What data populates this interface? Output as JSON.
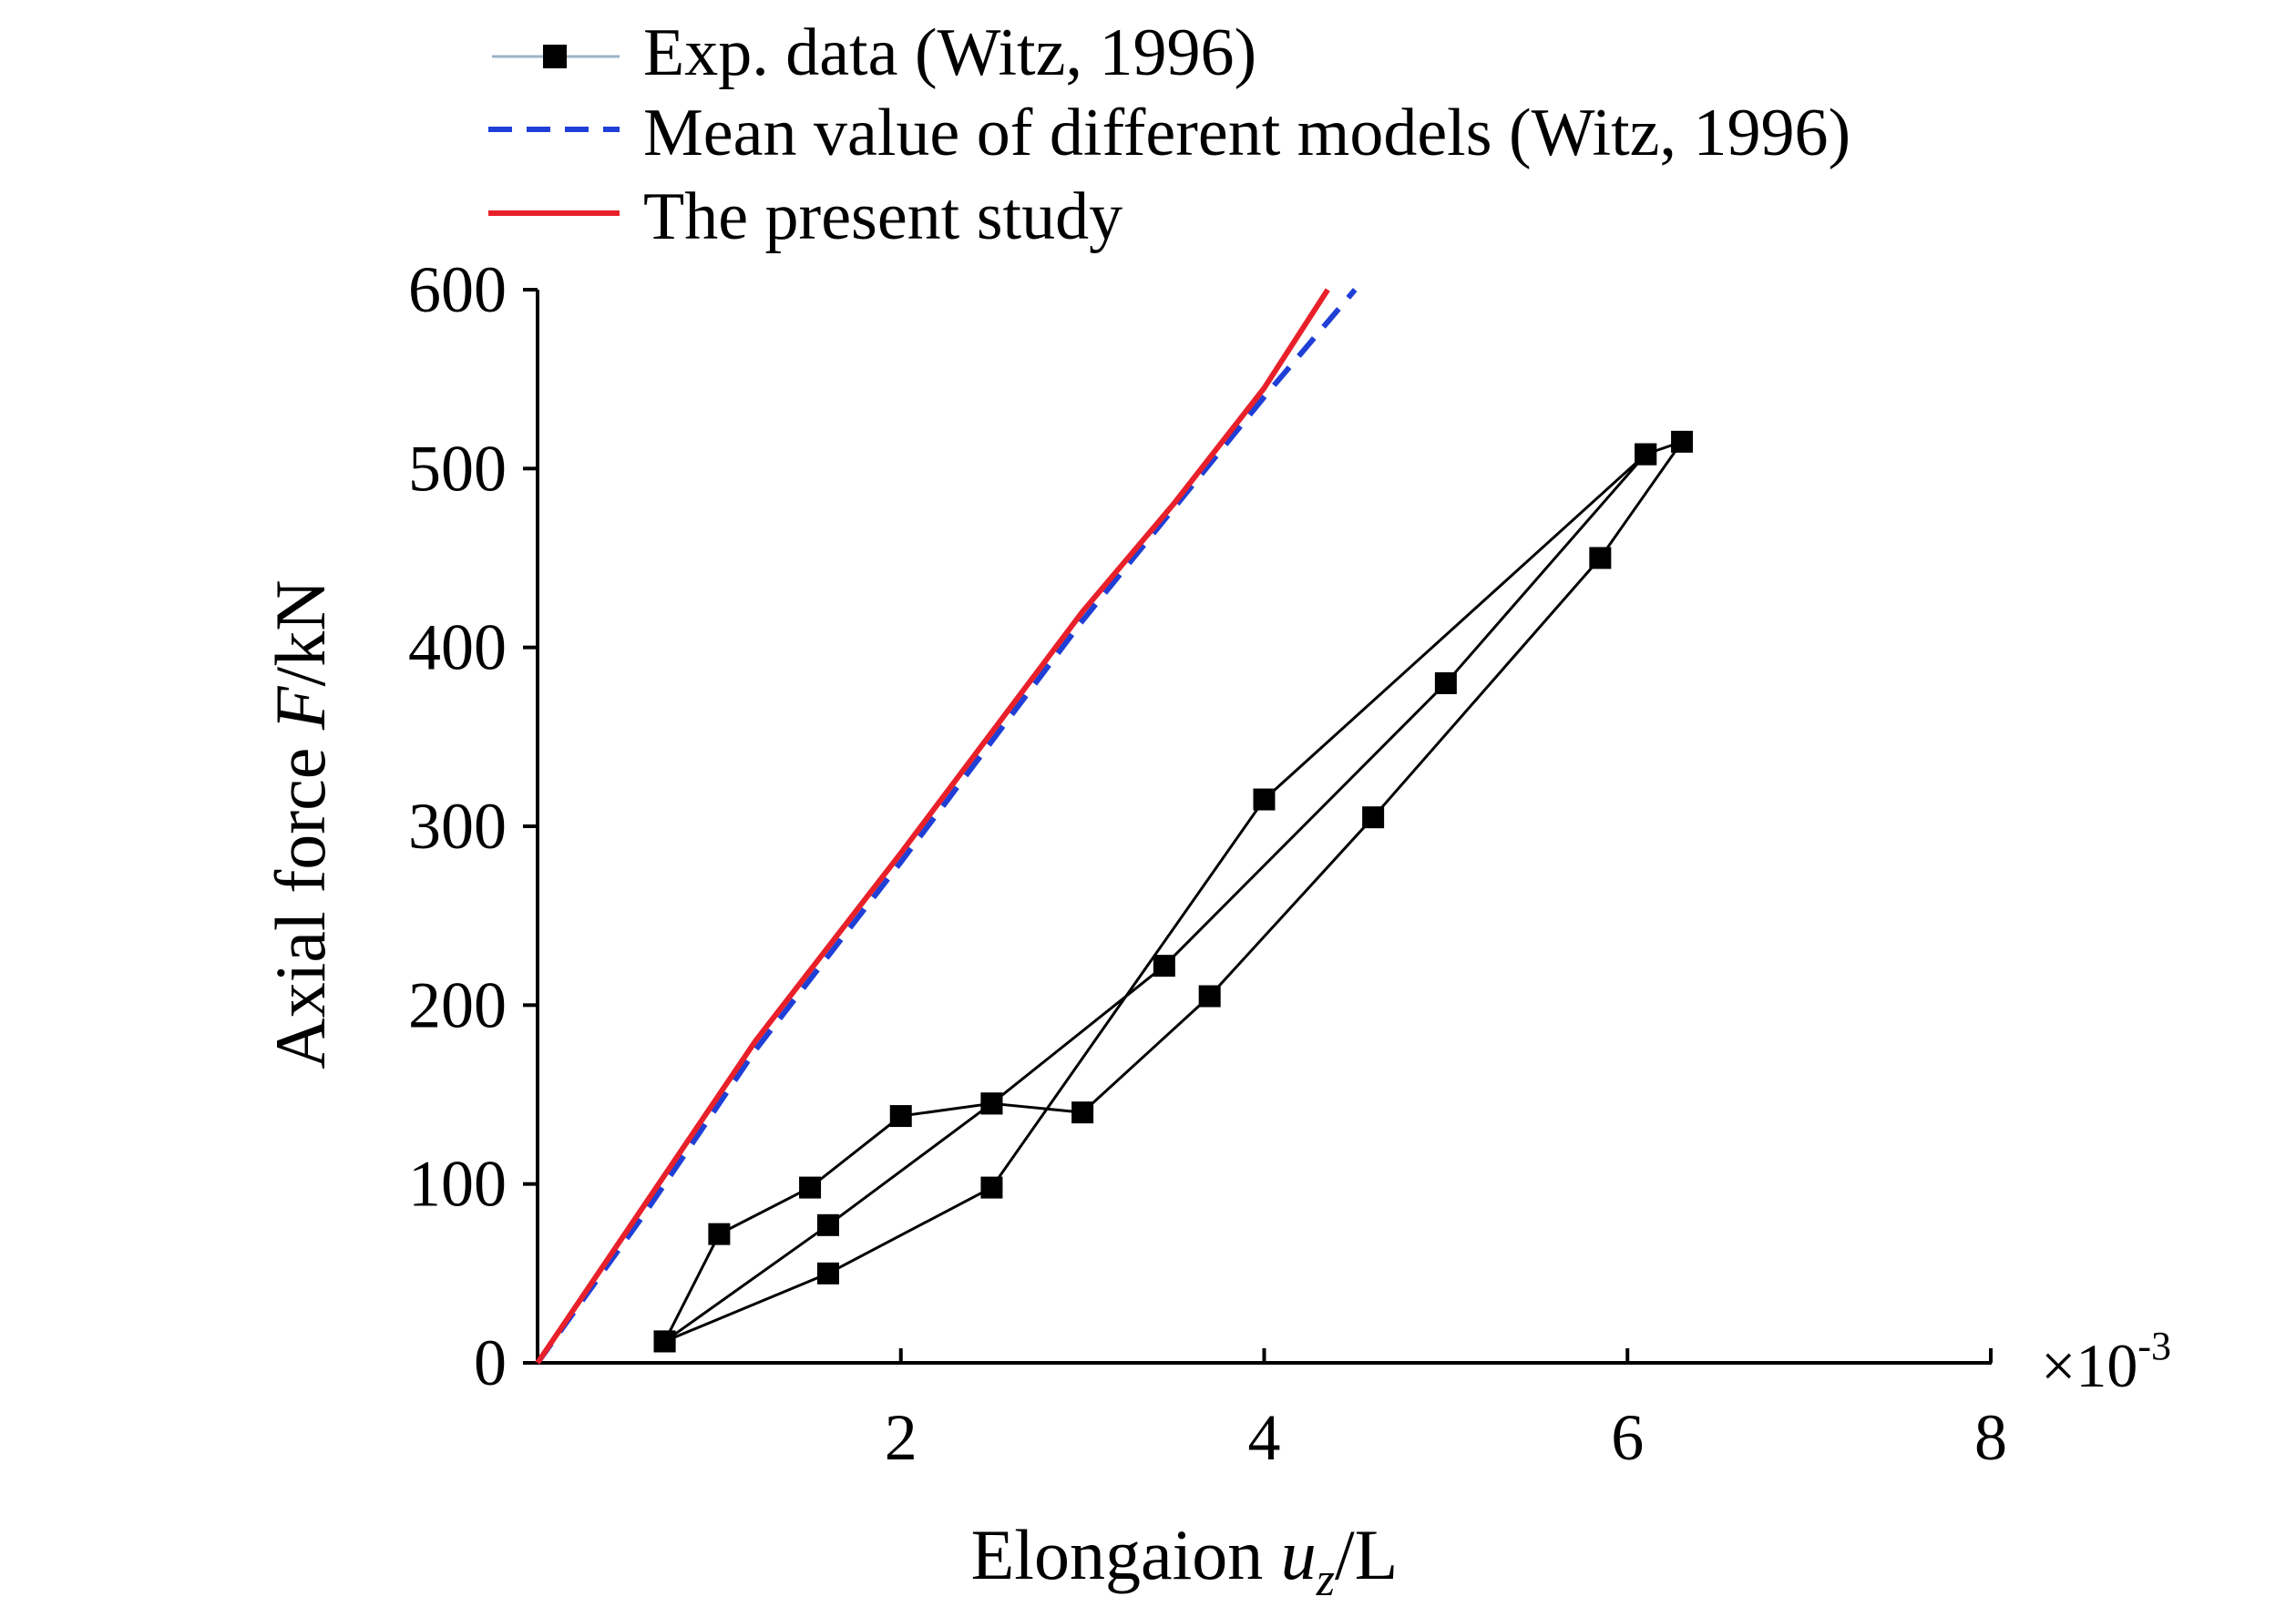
{
  "chart_data": {
    "type": "line",
    "xlabel": {
      "prefix": "Elongaion ",
      "var": "u",
      "sub": "z",
      "suffix": "/L"
    },
    "ylabel": {
      "prefix": "Axial force ",
      "var": "F",
      "suffix": "/kN"
    },
    "x_multiplier": {
      "base": "×10",
      "exp": "-3"
    },
    "xlim": [
      0,
      8
    ],
    "ylim": [
      0,
      600
    ],
    "x_ticks": [
      2,
      4,
      6,
      8
    ],
    "y_ticks": [
      0,
      100,
      200,
      300,
      400,
      500,
      600
    ],
    "grid": false,
    "legend_position": "top",
    "series": [
      {
        "name": "Exp. data (Witz, 1996)",
        "style": "line-square-markers",
        "color": "#000000",
        "x": [
          0.7,
          1.0,
          1.5,
          2.0,
          2.5,
          3.0,
          3.7,
          4.6,
          5.85,
          6.3,
          6.1,
          5.0,
          3.45,
          2.5,
          1.6,
          0.7,
          1.6,
          2.5,
          4.0,
          6.1
        ],
        "y": [
          12,
          72,
          98,
          138,
          145,
          140,
          205,
          305,
          450,
          515,
          508,
          380,
          222,
          145,
          77,
          12,
          50,
          98,
          315,
          508
        ]
      },
      {
        "name": "Mean value of different models (Witz, 1996)",
        "style": "dashed",
        "color": "#1f3fd6",
        "x": [
          0,
          0.6,
          1.2,
          2.0,
          3.0,
          4.0,
          4.5
        ],
        "y": [
          0,
          85,
          175,
          280,
          415,
          540,
          600
        ]
      },
      {
        "name": "The present study",
        "style": "solid",
        "color": "#e8202a",
        "x": [
          0,
          0.6,
          1.2,
          2.0,
          3.0,
          3.5,
          4.0,
          4.35
        ],
        "y": [
          0,
          90,
          180,
          285,
          420,
          480,
          545,
          600
        ]
      }
    ]
  }
}
